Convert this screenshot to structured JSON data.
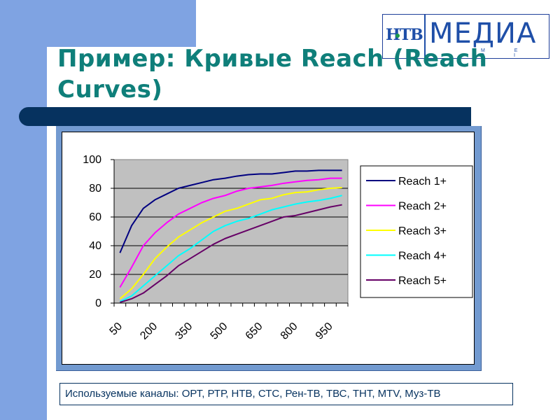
{
  "slide": {
    "title": "Пример:  Кривые Reach (Reach Curves)",
    "logo": {
      "mark": "НТВ",
      "text": "МЕДИА",
      "subtext": "M E D I A"
    },
    "footnote": "Используемые каналы: ОРТ, РТР, НТВ, СТС, Рен-ТВ, ТВС, ТНТ, MTV, Муз-ТВ"
  },
  "colors": {
    "title": "#0f7f7a",
    "side_panel": "#7fa3e2",
    "header_bar": "#06325f",
    "chart_frame": "#729ad0",
    "plot_bg": "#c0c0c0"
  },
  "chart_data": {
    "type": "line",
    "title": "",
    "xlabel": "",
    "ylabel": "",
    "ylim": [
      0,
      100
    ],
    "yticks": [
      0,
      20,
      40,
      60,
      80,
      100
    ],
    "grid": true,
    "legend_position": "right",
    "x": [
      50,
      100,
      150,
      200,
      250,
      300,
      350,
      400,
      450,
      500,
      550,
      600,
      650,
      700,
      750,
      800,
      850,
      900,
      950,
      1000
    ],
    "x_tick_labels_shown": [
      "50",
      "200",
      "350",
      "500",
      "650",
      "800",
      "950"
    ],
    "series": [
      {
        "name": "Reach  1+",
        "color": "#000080",
        "values": [
          35,
          54,
          66,
          72,
          76,
          80,
          82,
          84,
          86,
          87,
          88.5,
          89.5,
          90,
          90,
          91,
          92,
          92,
          92.5,
          92.5,
          92.5
        ]
      },
      {
        "name": "Reach  2+",
        "color": "#ff00ff",
        "values": [
          11,
          25,
          40,
          49,
          56,
          62,
          66,
          70,
          73,
          75,
          78,
          80,
          81,
          82,
          83.5,
          84.5,
          85.5,
          86,
          87,
          87
        ]
      },
      {
        "name": "Reach  3+",
        "color": "#ffff00",
        "values": [
          3,
          10,
          20,
          31,
          39,
          46,
          51,
          56,
          60,
          64,
          66,
          69,
          72,
          73,
          75.5,
          77,
          77.5,
          79,
          80,
          80.5
        ]
      },
      {
        "name": "Reach  4+",
        "color": "#00ffff",
        "values": [
          1,
          5,
          12,
          19,
          26,
          33,
          38,
          44,
          50,
          54,
          57,
          59,
          62,
          65,
          67,
          69,
          70.5,
          71.5,
          73,
          75
        ]
      },
      {
        "name": "Reach  5+",
        "color": "#660066",
        "values": [
          0.5,
          3,
          7,
          13,
          19,
          26,
          31,
          36,
          41,
          45,
          48,
          51,
          54,
          57,
          60,
          61,
          63,
          65,
          67,
          68.5
        ]
      }
    ]
  }
}
